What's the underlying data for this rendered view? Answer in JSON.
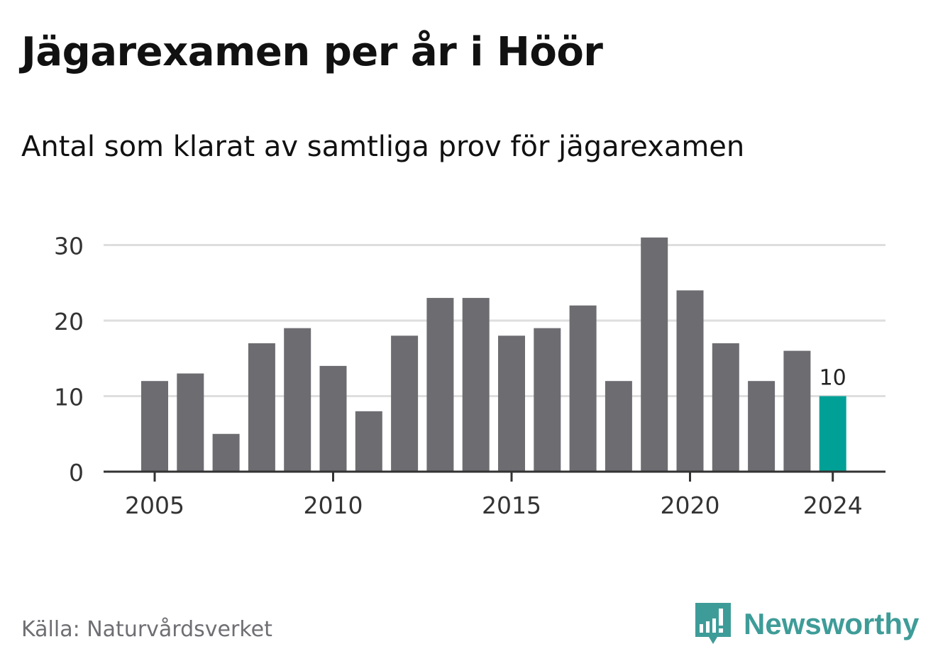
{
  "header": {
    "title": "Jägarexamen per år i Höör",
    "subtitle": "Antal som klarat av samtliga prov för jägarexamen"
  },
  "footer": {
    "source": "Källa: Naturvårdsverket",
    "brand_name": "Newsworthy",
    "brand_icon": "newsworthy-logo-icon"
  },
  "colors": {
    "bar": "#6d6c71",
    "highlight": "#00a096",
    "grid": "#dedede",
    "axis": "#333333",
    "tick_text": "#333333",
    "brand": "#3e9c98"
  },
  "chart_data": {
    "type": "bar",
    "x": [
      2005,
      2006,
      2007,
      2008,
      2009,
      2010,
      2011,
      2012,
      2013,
      2014,
      2015,
      2016,
      2017,
      2018,
      2019,
      2020,
      2021,
      2022,
      2023,
      2024
    ],
    "values": [
      12,
      13,
      5,
      17,
      19,
      14,
      8,
      18,
      23,
      23,
      18,
      19,
      22,
      12,
      31,
      24,
      17,
      12,
      16,
      10
    ],
    "highlight_x": 2024,
    "data_labels": [
      {
        "x": 2024,
        "text": "10"
      }
    ],
    "x_ticks": [
      2005,
      2010,
      2015,
      2020,
      2024
    ],
    "x_tick_labels": [
      "2005",
      "2010",
      "2015",
      "2020",
      "2024"
    ],
    "y_ticks": [
      0,
      10,
      20,
      30
    ],
    "y_tick_labels": [
      "0",
      "10",
      "20",
      "30"
    ],
    "ylim": [
      0,
      31
    ],
    "grid": true,
    "title": "Jägarexamen per år i Höör",
    "subtitle": "Antal som klarat av samtliga prov för jägarexamen",
    "xlabel": "",
    "ylabel": ""
  }
}
